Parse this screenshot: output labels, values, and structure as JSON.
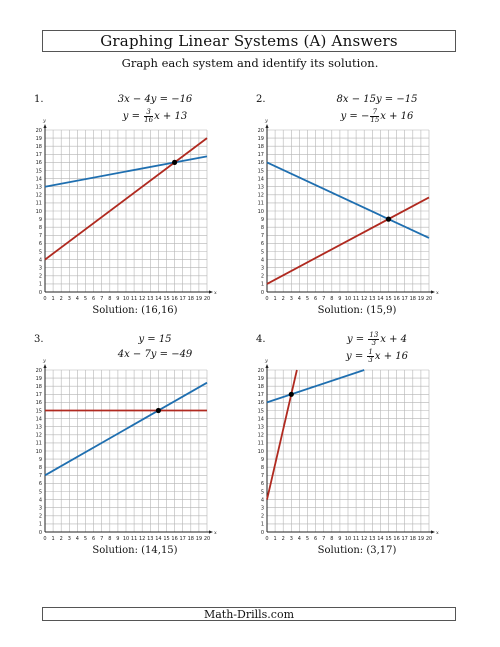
{
  "header": {
    "title": "Graphing Linear Systems (A) Answers",
    "instructions": "Graph each system and identify its solution."
  },
  "footer": {
    "site": "Math-Drills.com"
  },
  "axis": {
    "x_label": "x",
    "y_label": "y"
  },
  "colors": {
    "line1": "#1f6fb0",
    "line2": "#b02a20",
    "grid": "#b5b5b5",
    "axis": "#222222",
    "point": "#000000"
  },
  "problems": [
    {
      "number": "1.",
      "eq1": {
        "pre": "3x − 4y = −16",
        "frac_num": "",
        "frac_den": "",
        "post": ""
      },
      "eq2": {
        "pre": "y = ",
        "frac_num": "3",
        "frac_den": "16",
        "post": "x + 13"
      },
      "solution": "Solution:  (16,16)"
    },
    {
      "number": "2.",
      "eq1": {
        "pre": "8x − 15y = −15",
        "frac_num": "",
        "frac_den": "",
        "post": ""
      },
      "eq2": {
        "pre": "y = −",
        "frac_num": "7",
        "frac_den": "15",
        "post": "x + 16"
      },
      "solution": "Solution:  (15,9)"
    },
    {
      "number": "3.",
      "eq1": {
        "pre": "y = 15",
        "frac_num": "",
        "frac_den": "",
        "post": ""
      },
      "eq2": {
        "pre": "4x − 7y = −49",
        "frac_num": "",
        "frac_den": "",
        "post": ""
      },
      "solution": "Solution:  (14,15)"
    },
    {
      "number": "4.",
      "eq1": {
        "pre": "y = ",
        "frac_num": "13",
        "frac_den": "3",
        "post": "x + 4"
      },
      "eq2": {
        "pre": "y = ",
        "frac_num": "1",
        "frac_den": "3",
        "post": "x + 16"
      },
      "solution": "Solution:  (3,17)"
    }
  ],
  "chart_data": [
    {
      "type": "line",
      "xlim": [
        0,
        20
      ],
      "ylim": [
        0,
        20
      ],
      "grid": true,
      "series": [
        {
          "equation": "y = 3/16 x + 13",
          "color": "#1f6fb0",
          "x": [
            0,
            20
          ],
          "y": [
            13,
            16.75
          ]
        },
        {
          "equation": "3x − 4y = −16",
          "color": "#b02a20",
          "x": [
            0,
            20
          ],
          "y": [
            4,
            19
          ]
        }
      ],
      "solution_point": [
        16,
        16
      ]
    },
    {
      "type": "line",
      "xlim": [
        0,
        20
      ],
      "ylim": [
        0,
        20
      ],
      "grid": true,
      "series": [
        {
          "equation": "y = −7/15 x + 16",
          "color": "#1f6fb0",
          "x": [
            0,
            20
          ],
          "y": [
            16,
            6.67
          ]
        },
        {
          "equation": "8x − 15y = −15",
          "color": "#b02a20",
          "x": [
            0,
            20
          ],
          "y": [
            1,
            11.67
          ]
        }
      ],
      "solution_point": [
        15,
        9
      ]
    },
    {
      "type": "line",
      "xlim": [
        0,
        20
      ],
      "ylim": [
        0,
        20
      ],
      "grid": true,
      "series": [
        {
          "equation": "4x − 7y = −49",
          "color": "#1f6fb0",
          "x": [
            0,
            20
          ],
          "y": [
            7,
            18.43
          ]
        },
        {
          "equation": "y = 15",
          "color": "#b02a20",
          "x": [
            0,
            20
          ],
          "y": [
            15,
            15
          ]
        }
      ],
      "solution_point": [
        14,
        15
      ]
    },
    {
      "type": "line",
      "xlim": [
        0,
        20
      ],
      "ylim": [
        0,
        20
      ],
      "grid": true,
      "series": [
        {
          "equation": "y = 1/3 x + 16",
          "color": "#1f6fb0",
          "x": [
            0,
            12
          ],
          "y": [
            16,
            20
          ]
        },
        {
          "equation": "y = 13/3 x + 4",
          "color": "#b02a20",
          "x": [
            0,
            3.69
          ],
          "y": [
            4,
            20
          ]
        }
      ],
      "solution_point": [
        3,
        17
      ]
    }
  ]
}
